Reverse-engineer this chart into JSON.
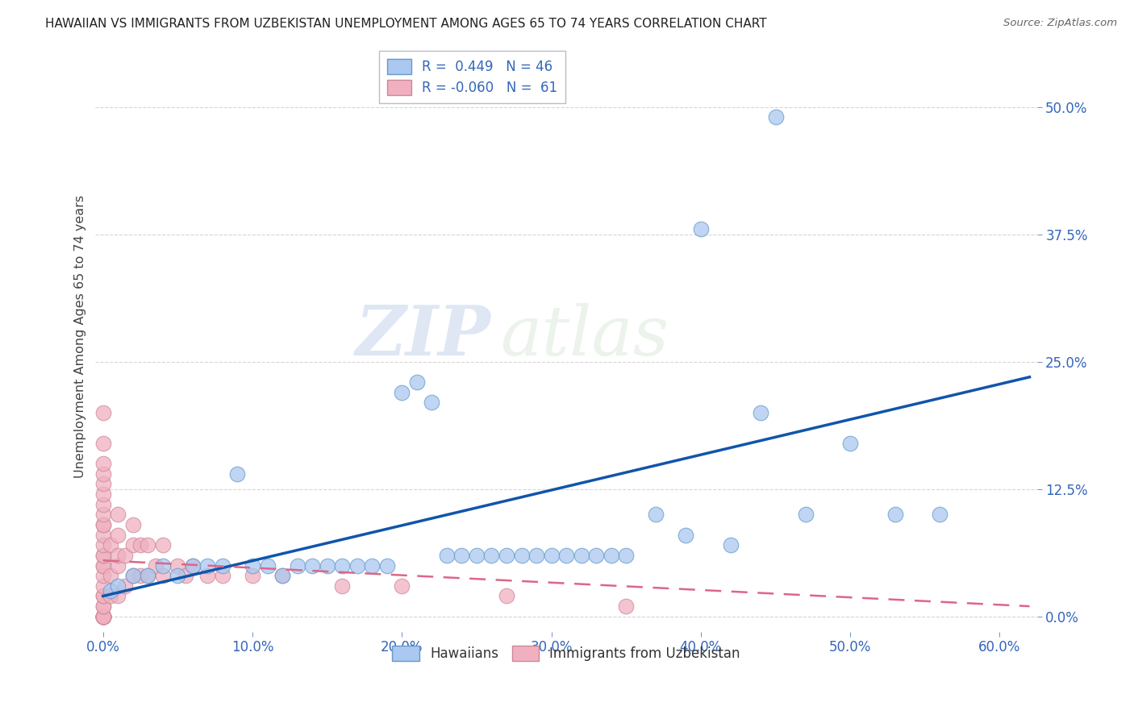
{
  "title": "HAWAIIAN VS IMMIGRANTS FROM UZBEKISTAN UNEMPLOYMENT AMONG AGES 65 TO 74 YEARS CORRELATION CHART",
  "source": "Source: ZipAtlas.com",
  "xlim": [
    -0.005,
    0.625
  ],
  "ylim": [
    -0.015,
    0.565
  ],
  "hawaiians_x": [
    0.005,
    0.01,
    0.02,
    0.03,
    0.04,
    0.05,
    0.06,
    0.07,
    0.08,
    0.09,
    0.1,
    0.11,
    0.12,
    0.13,
    0.14,
    0.15,
    0.16,
    0.17,
    0.18,
    0.19,
    0.2,
    0.21,
    0.22,
    0.23,
    0.24,
    0.25,
    0.26,
    0.27,
    0.28,
    0.29,
    0.3,
    0.31,
    0.32,
    0.33,
    0.34,
    0.35,
    0.37,
    0.39,
    0.42,
    0.44,
    0.47,
    0.5,
    0.53,
    0.56,
    0.4,
    0.45
  ],
  "hawaiians_y": [
    0.025,
    0.03,
    0.04,
    0.04,
    0.05,
    0.04,
    0.05,
    0.05,
    0.05,
    0.14,
    0.05,
    0.05,
    0.04,
    0.05,
    0.05,
    0.05,
    0.05,
    0.05,
    0.05,
    0.05,
    0.22,
    0.23,
    0.21,
    0.06,
    0.06,
    0.06,
    0.06,
    0.06,
    0.06,
    0.06,
    0.06,
    0.06,
    0.06,
    0.06,
    0.06,
    0.06,
    0.1,
    0.08,
    0.07,
    0.2,
    0.1,
    0.17,
    0.1,
    0.1,
    0.38,
    0.49
  ],
  "uzbekistan_x": [
    0.0,
    0.0,
    0.0,
    0.0,
    0.0,
    0.0,
    0.0,
    0.0,
    0.0,
    0.0,
    0.0,
    0.0,
    0.0,
    0.0,
    0.0,
    0.0,
    0.0,
    0.0,
    0.0,
    0.0,
    0.0,
    0.0,
    0.0,
    0.0,
    0.0,
    0.0,
    0.0,
    0.0,
    0.0,
    0.0,
    0.005,
    0.005,
    0.005,
    0.01,
    0.01,
    0.01,
    0.01,
    0.01,
    0.015,
    0.015,
    0.02,
    0.02,
    0.02,
    0.025,
    0.025,
    0.03,
    0.03,
    0.035,
    0.04,
    0.04,
    0.05,
    0.055,
    0.06,
    0.07,
    0.08,
    0.1,
    0.12,
    0.16,
    0.2,
    0.27,
    0.35
  ],
  "uzbekistan_y": [
    0.0,
    0.0,
    0.0,
    0.0,
    0.0,
    0.0,
    0.0,
    0.0,
    0.01,
    0.01,
    0.02,
    0.02,
    0.03,
    0.04,
    0.05,
    0.05,
    0.06,
    0.06,
    0.07,
    0.08,
    0.09,
    0.09,
    0.1,
    0.11,
    0.12,
    0.13,
    0.14,
    0.15,
    0.17,
    0.2,
    0.02,
    0.04,
    0.07,
    0.02,
    0.05,
    0.06,
    0.08,
    0.1,
    0.03,
    0.06,
    0.04,
    0.07,
    0.09,
    0.04,
    0.07,
    0.04,
    0.07,
    0.05,
    0.04,
    0.07,
    0.05,
    0.04,
    0.05,
    0.04,
    0.04,
    0.04,
    0.04,
    0.03,
    0.03,
    0.02,
    0.01
  ],
  "hawaiians_color": "#aac8f0",
  "uzbekistan_color": "#f0b0c0",
  "hawaiians_edge": "#6699cc",
  "uzbekistan_edge": "#cc8899",
  "trend_blue_color": "#1155aa",
  "trend_pink_color": "#dd6688",
  "trend_blue_start_y": 0.02,
  "trend_blue_end_y": 0.235,
  "trend_pink_start_y": 0.055,
  "trend_pink_end_y": 0.01,
  "R_hawaiians": 0.449,
  "N_hawaiians": 46,
  "R_uzbekistan": -0.06,
  "N_uzbekistan": 61,
  "ylabel": "Unemployment Among Ages 65 to 74 years",
  "watermark_zip": "ZIP",
  "watermark_atlas": "atlas",
  "background_color": "#ffffff",
  "title_fontsize": 11,
  "tick_label_color": "#3366bb",
  "grid_color": "#cccccc"
}
